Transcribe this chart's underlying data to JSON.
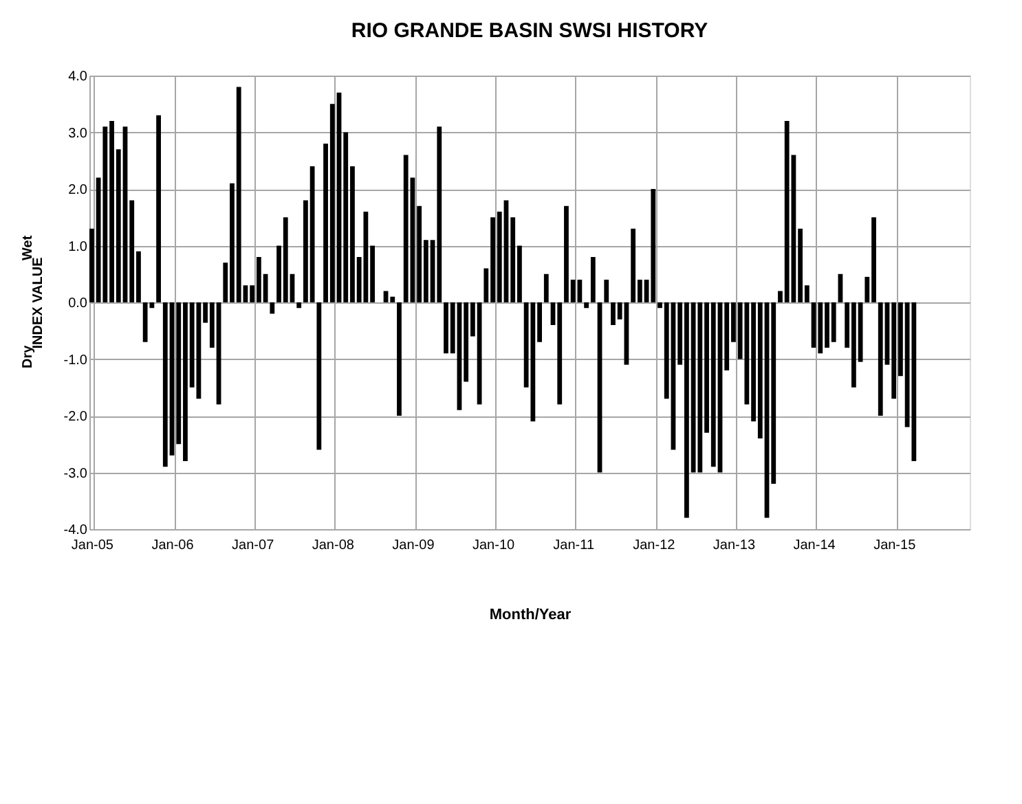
{
  "chart_data": {
    "type": "bar",
    "title": "RIO GRANDE BASIN SWSI HISTORY",
    "xlabel": "Month/Year",
    "ylabel": "INDEX VALUE",
    "annotations": [
      "Wet",
      "Dry"
    ],
    "categories": [
      "Jan-05",
      null,
      null,
      null,
      null,
      null,
      null,
      null,
      null,
      null,
      null,
      null,
      "Jan-06",
      null,
      null,
      null,
      null,
      null,
      null,
      null,
      null,
      null,
      null,
      null,
      "Jan-07",
      null,
      null,
      null,
      null,
      null,
      null,
      null,
      null,
      null,
      null,
      null,
      "Jan-08",
      null,
      null,
      null,
      null,
      null,
      null,
      null,
      null,
      null,
      null,
      null,
      "Jan-09",
      null,
      null,
      null,
      null,
      null,
      null,
      null,
      null,
      null,
      null,
      null,
      "Jan-10",
      null,
      null,
      null,
      null,
      null,
      null,
      null,
      null,
      null,
      null,
      null,
      "Jan-11",
      null,
      null,
      null,
      null,
      null,
      null,
      null,
      null,
      null,
      null,
      null,
      "Jan-12",
      null,
      null,
      null,
      null,
      null,
      null,
      null,
      null,
      null,
      null,
      null,
      "Jan-13",
      null,
      null,
      null,
      null,
      null,
      null,
      null,
      null,
      null,
      null,
      null,
      "Jan-14",
      null,
      null,
      null,
      null,
      null,
      null,
      null,
      null,
      null,
      null,
      null,
      "Jan-15",
      null,
      null,
      null,
      null,
      null,
      null,
      null,
      null,
      null,
      null,
      null
    ],
    "values": [
      1.3,
      2.2,
      3.1,
      3.2,
      2.7,
      3.1,
      1.8,
      0.9,
      -0.7,
      -0.1,
      3.3,
      -2.9,
      -2.7,
      -2.5,
      -2.8,
      -1.5,
      -1.7,
      -0.36,
      -0.8,
      -1.8,
      0.7,
      2.1,
      3.8,
      0.3,
      0.3,
      0.8,
      0.5,
      -0.2,
      1.0,
      1.5,
      0.5,
      -0.1,
      1.8,
      2.4,
      -2.6,
      2.8,
      3.5,
      3.7,
      3.0,
      2.4,
      0.8,
      1.6,
      1.0,
      null,
      0.2,
      0.1,
      -2.0,
      2.6,
      2.2,
      1.7,
      1.1,
      1.1,
      3.1,
      -0.9,
      -0.9,
      -1.9,
      -1.4,
      -0.6,
      -1.8,
      0.6,
      1.5,
      1.6,
      1.8,
      1.5,
      1.0,
      -1.5,
      -2.1,
      -0.7,
      0.5,
      -0.4,
      -1.8,
      1.7,
      0.4,
      0.4,
      -0.1,
      0.8,
      -3.0,
      0.4,
      -0.4,
      -0.3,
      -1.1,
      1.3,
      0.4,
      0.4,
      2.0,
      -0.1,
      -1.7,
      -2.6,
      -1.1,
      -3.8,
      -3.0,
      -3.0,
      -2.3,
      -2.9,
      -3.0,
      -1.2,
      -0.7,
      -1.0,
      -1.8,
      -2.1,
      -2.4,
      -3.8,
      -3.2,
      0.2,
      3.2,
      2.6,
      1.3,
      0.3,
      -0.8,
      -0.9,
      -0.8,
      -0.7,
      0.5,
      -0.8,
      -1.5,
      -1.05,
      0.45,
      1.5,
      -2.0,
      -1.1,
      -1.7,
      -1.3,
      -2.2,
      -2.8,
      null,
      null,
      null,
      null,
      null,
      null,
      null,
      null
    ],
    "color": "#000000",
    "ylim": [
      -4,
      4
    ],
    "yticks": [
      {
        "value": -4,
        "label": "-4.0"
      },
      {
        "value": -3,
        "label": "-3.0"
      },
      {
        "value": -2,
        "label": "-2.0"
      },
      {
        "value": -1,
        "label": "-1.0"
      },
      {
        "value": 0,
        "label": "0.0"
      },
      {
        "value": 1,
        "label": "1.0"
      },
      {
        "value": 2,
        "label": "2.0"
      },
      {
        "value": 3,
        "label": "3.0"
      },
      {
        "value": 4,
        "label": "4.0"
      }
    ],
    "grid": true
  }
}
